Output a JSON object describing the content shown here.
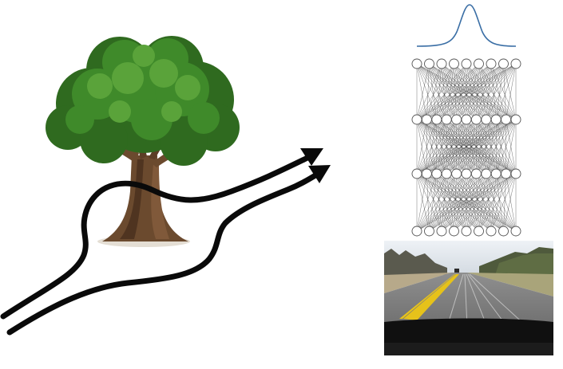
{
  "scene": {
    "left_illustration": "tree-with-two-paths",
    "right_stack": [
      "gaussian-curve",
      "neural-network",
      "road-camera-view"
    ]
  },
  "network": {
    "layer_sizes": [
      9,
      11,
      11,
      9
    ]
  },
  "colors": {
    "background": "#ffffff",
    "path": "#0a0a0a",
    "foliage_dark": "#2f6a1f",
    "foliage_mid": "#3f8a2a",
    "foliage_light": "#5aa33a",
    "trunk": "#6b4a2e",
    "curve": "#3a6ea5",
    "node_stroke": "#555555",
    "edge": "#333333"
  }
}
